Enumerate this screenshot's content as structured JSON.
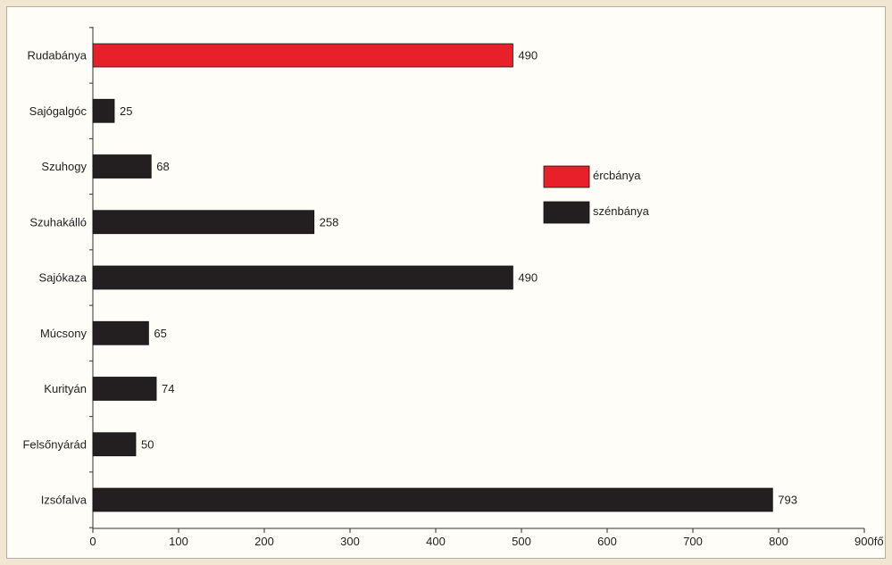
{
  "chart_data": {
    "type": "bar",
    "orientation": "horizontal",
    "categories": [
      "Rudabánya",
      "Sajógalgóc",
      "Szuhogy",
      "Szuhakálló",
      "Sajókaza",
      "Múcsony",
      "Kurityán",
      "Felsőnyárád",
      "Izsófalva"
    ],
    "values": [
      490,
      25,
      68,
      258,
      490,
      65,
      74,
      50,
      793
    ],
    "kinds": [
      "ércbánya",
      "szénbánya",
      "szénbánya",
      "szénbánya",
      "szénbánya",
      "szénbánya",
      "szénbánya",
      "szénbánya",
      "szénbánya"
    ],
    "xlim": [
      0,
      900
    ],
    "x_ticks": [
      "0",
      "100",
      "200",
      "300",
      "400",
      "500",
      "600",
      "700",
      "800",
      "900"
    ],
    "x_unit": "fő",
    "grid": false,
    "legend": {
      "position": "center-right",
      "entries": [
        {
          "label": "ércbánya",
          "color": "#e8202a"
        },
        {
          "label": "szénbánya",
          "color": "#231f20"
        }
      ]
    },
    "colors": {
      "ércbánya": "#e8202a",
      "szénbánya": "#231f20"
    }
  }
}
